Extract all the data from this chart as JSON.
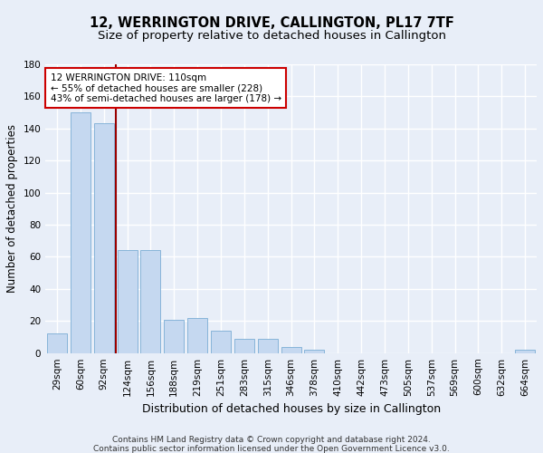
{
  "title": "12, WERRINGTON DRIVE, CALLINGTON, PL17 7TF",
  "subtitle": "Size of property relative to detached houses in Callington",
  "xlabel": "Distribution of detached houses by size in Callington",
  "ylabel": "Number of detached properties",
  "categories": [
    "29sqm",
    "60sqm",
    "92sqm",
    "124sqm",
    "156sqm",
    "188sqm",
    "219sqm",
    "251sqm",
    "283sqm",
    "315sqm",
    "346sqm",
    "378sqm",
    "410sqm",
    "442sqm",
    "473sqm",
    "505sqm",
    "537sqm",
    "569sqm",
    "600sqm",
    "632sqm",
    "664sqm"
  ],
  "values": [
    12,
    150,
    143,
    64,
    64,
    21,
    22,
    14,
    9,
    9,
    4,
    2,
    0,
    0,
    0,
    0,
    0,
    0,
    0,
    0,
    2
  ],
  "bar_color": "#c5d8f0",
  "bar_edge_color": "#7aadd4",
  "background_color": "#e8eef8",
  "grid_color": "#ffffff",
  "vline_color": "#990000",
  "vline_x_index": 2.5,
  "annotation_text": "12 WERRINGTON DRIVE: 110sqm\n← 55% of detached houses are smaller (228)\n43% of semi-detached houses are larger (178) →",
  "annotation_box_color": "#ffffff",
  "annotation_box_edge": "#cc0000",
  "ylim": [
    0,
    180
  ],
  "yticks": [
    0,
    20,
    40,
    60,
    80,
    100,
    120,
    140,
    160,
    180
  ],
  "footnote1": "Contains HM Land Registry data © Crown copyright and database right 2024.",
  "footnote2": "Contains public sector information licensed under the Open Government Licence v3.0.",
  "title_fontsize": 10.5,
  "subtitle_fontsize": 9.5,
  "ylabel_fontsize": 8.5,
  "xlabel_fontsize": 9,
  "tick_fontsize": 7.5,
  "annotation_fontsize": 7.5,
  "footnote_fontsize": 6.5
}
